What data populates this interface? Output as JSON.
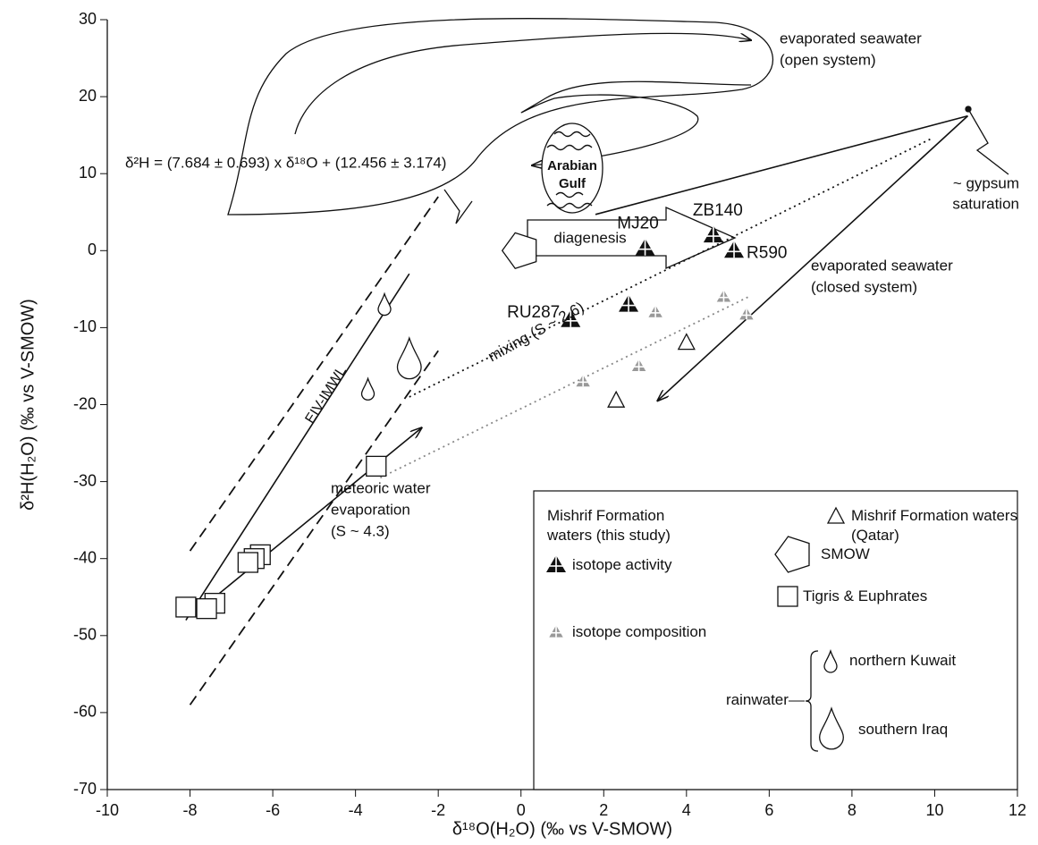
{
  "chart_data": {
    "type": "scatter",
    "x_label": "δ¹⁸O(H₂O) (‰ vs V-SMOW)",
    "y_label": "δ²H(H₂O) (‰ vs V-SMOW)",
    "xlim": [
      -10,
      12
    ],
    "ylim": [
      -70,
      30
    ],
    "xticks": [
      -10,
      -8,
      -6,
      -4,
      -2,
      0,
      2,
      4,
      6,
      8,
      10,
      12
    ],
    "yticks": [
      -70,
      -60,
      -50,
      -40,
      -30,
      -20,
      -10,
      0,
      10,
      20,
      30
    ],
    "series": [
      {
        "name": "isotope activity",
        "marker": "activity",
        "color": "#111111",
        "x": [
          3.0,
          4.65,
          5.15,
          1.2,
          2.6
        ],
        "values": [
          0.3,
          2,
          0,
          -9,
          -7
        ],
        "labels": [
          "MJ20",
          "ZB140",
          "R590",
          "RU287",
          null
        ]
      },
      {
        "name": "isotope composition",
        "marker": "activity",
        "color": "#999999",
        "x": [
          3.25,
          4.9,
          5.45,
          2.85,
          1.5
        ],
        "values": [
          -8,
          -6,
          -8.3,
          -15,
          -17
        ]
      },
      {
        "name": "Mishrif Formation waters (Qatar)",
        "marker": "triangle",
        "color": "#111111",
        "x": [
          4.0,
          2.3
        ],
        "values": [
          -12,
          -19.5
        ]
      },
      {
        "name": "SMOW",
        "marker": "pentagon",
        "color": "#111111",
        "x": [
          0
        ],
        "values": [
          0
        ]
      },
      {
        "name": "Tigris & Euphrates",
        "marker": "square",
        "color": "#111111",
        "x": [
          -3.5,
          -6.3,
          -6.45,
          -6.6,
          -7.4,
          -7.6,
          -8.1
        ],
        "values": [
          -28,
          -39.5,
          -40,
          -40.5,
          -45.8,
          -46.5,
          -46.3
        ]
      },
      {
        "name": "northern Kuwait",
        "marker": "drop-small",
        "color": "#111111",
        "x": [
          -3.3,
          -3.7
        ],
        "values": [
          -7,
          -18
        ]
      },
      {
        "name": "southern Iraq",
        "marker": "drop-large",
        "color": "#111111",
        "x": [
          -2.7
        ],
        "values": [
          -14
        ]
      }
    ],
    "lines": [
      {
        "x": [
          -8.1,
          -2.7
        ],
        "y": [
          -48,
          -3
        ],
        "style": "solid",
        "color": "#111111"
      },
      {
        "x": [
          -8,
          -2
        ],
        "y": [
          -39,
          7
        ],
        "style": "dashed",
        "color": "#111111"
      },
      {
        "x": [
          -8,
          -2
        ],
        "y": [
          -59,
          -13
        ],
        "style": "dashed",
        "color": "#111111"
      },
      {
        "x": [
          -7.4,
          -2.4
        ],
        "y": [
          -45,
          -23
        ],
        "style": "solid",
        "color": "#111111",
        "arrow": true
      },
      {
        "x": [
          -2.7,
          9.9
        ],
        "y": [
          -19,
          14.5
        ],
        "style": "dotted",
        "color": "#111111"
      },
      {
        "x": [
          -3.4,
          5.5
        ],
        "y": [
          -29.5,
          -6
        ],
        "style": "dotted",
        "color": "#888888"
      },
      {
        "x": [
          10.8,
          3.3
        ],
        "y": [
          17.5,
          -19.5
        ],
        "style": "solid",
        "color": "#111111",
        "arrow": true
      },
      {
        "x": [
          1.8,
          10.8
        ],
        "y": [
          4.7,
          17.5
        ],
        "style": "solid",
        "color": "#111111"
      }
    ],
    "annotations": [
      "evaporated seawater",
      "(open system)",
      "~ gypsum",
      "saturation",
      "evaporated seawater",
      "(closed system)",
      "Arabian",
      "Gulf",
      "diagenesis",
      "mixing (S ~ 2.6)",
      "EIV-IMWL",
      "meteoric water",
      "evaporation",
      "(S ~ 4.3)",
      "δ²H = (7.684 ± 0.693) x δ¹⁸O + (12.456 ± 3.174)"
    ],
    "legend": {
      "groups": [
        "Mishrif Formation waters (this study)",
        "rainwater"
      ],
      "position": "lower right"
    }
  }
}
